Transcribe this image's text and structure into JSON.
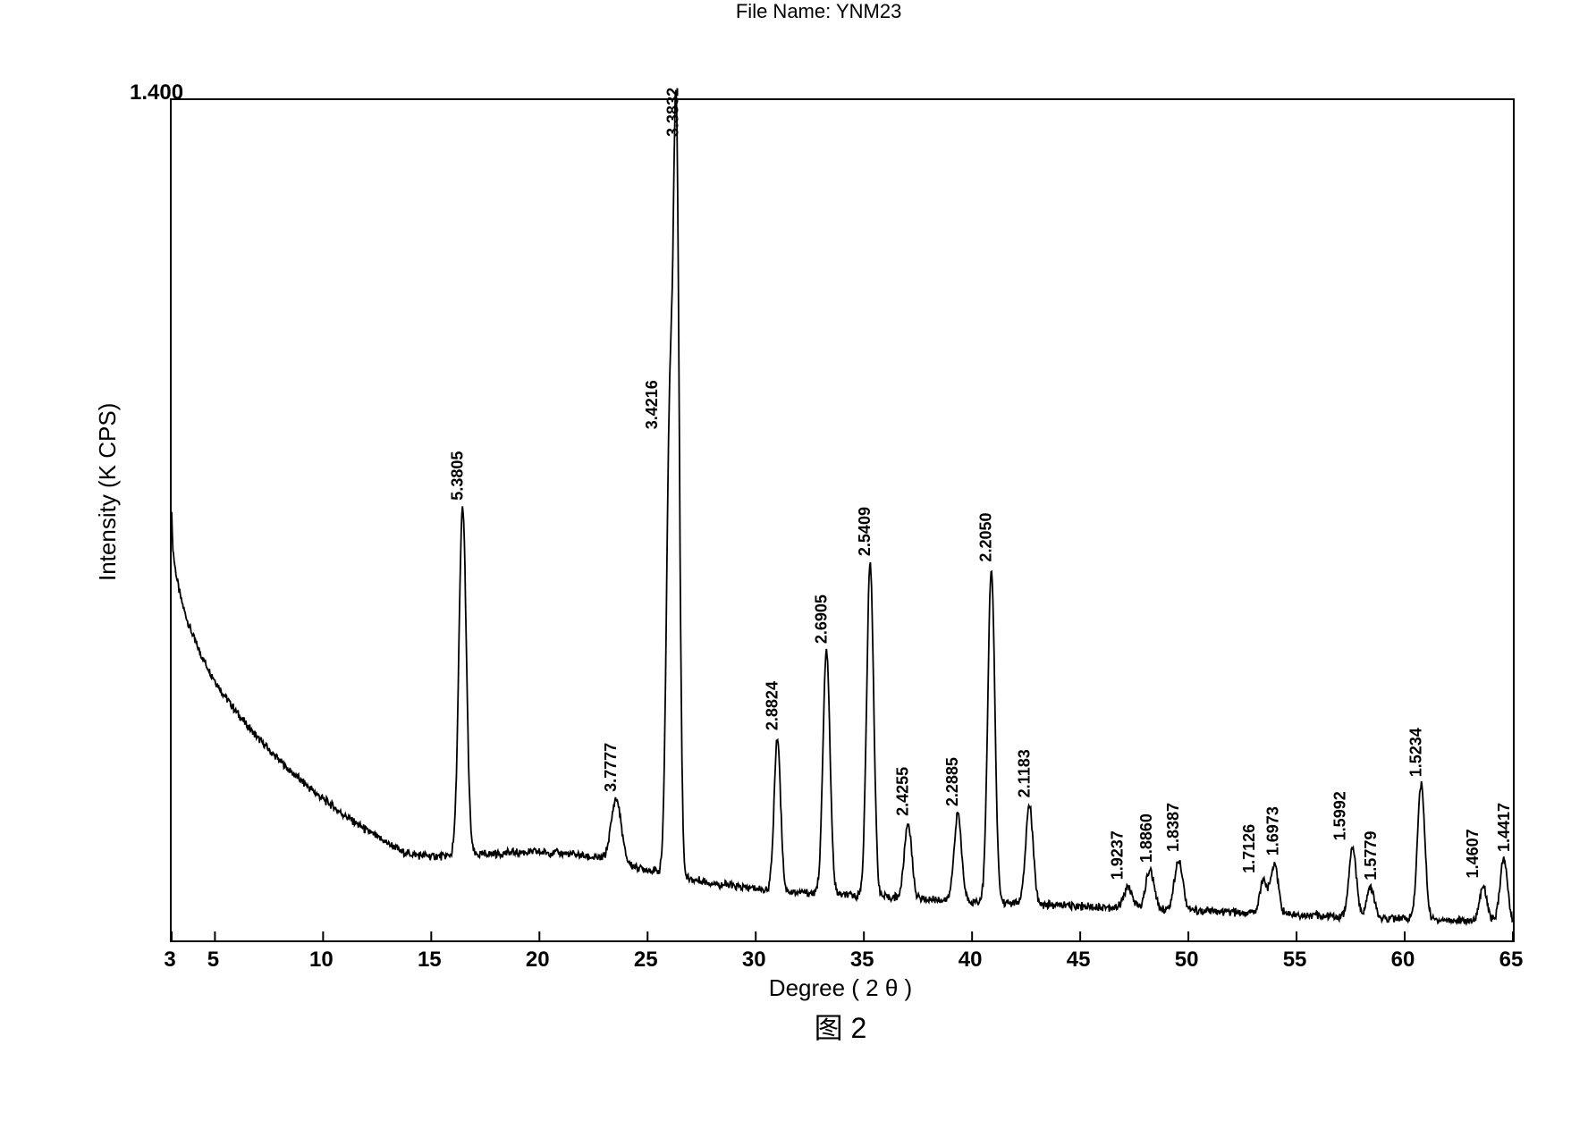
{
  "file_name_label": "File Name: YNM23",
  "figure_caption": "图 2",
  "chart": {
    "type": "xrd-spectrum",
    "xlabel": "Degree ( 2 θ )",
    "ylabel": "Intensity   (K CPS)",
    "ylim_label": "1.400",
    "xlim": [
      3,
      65
    ],
    "ylim": [
      0,
      1.4
    ],
    "background_color": "#ffffff",
    "line_color": "#000000",
    "line_width": 1.8,
    "label_fontsize": 26,
    "tick_fontsize": 24,
    "peak_label_fontsize": 18,
    "x_ticks": [
      3,
      5,
      10,
      15,
      20,
      25,
      30,
      35,
      40,
      45,
      50,
      55,
      60,
      65
    ],
    "baseline_start_y": 0.72,
    "baseline_trough_x": 13.5,
    "baseline_trough_y": 0.145,
    "baseline_hump_center": 21,
    "baseline_hump_height": 0.04,
    "baseline_end_y": 0.03,
    "noise_amplitude": 0.012,
    "peaks": [
      {
        "two_theta": 16.45,
        "height": 0.58,
        "fwhm": 0.4,
        "label": "5.3805"
      },
      {
        "two_theta": 23.55,
        "height": 0.105,
        "fwhm": 0.55,
        "label": "3.7777"
      },
      {
        "two_theta": 26.02,
        "height": 0.73,
        "fwhm": 0.35,
        "label": "3.4216"
      },
      {
        "two_theta": 26.33,
        "height": 1.22,
        "fwhm": 0.32,
        "label": "3.3832"
      },
      {
        "two_theta": 31.0,
        "height": 0.255,
        "fwhm": 0.35,
        "label": "2.8824"
      },
      {
        "two_theta": 33.27,
        "height": 0.405,
        "fwhm": 0.38,
        "label": "2.6905"
      },
      {
        "two_theta": 35.29,
        "height": 0.555,
        "fwhm": 0.38,
        "label": "2.5409"
      },
      {
        "two_theta": 37.04,
        "height": 0.125,
        "fwhm": 0.4,
        "label": "2.4255"
      },
      {
        "two_theta": 39.34,
        "height": 0.145,
        "fwhm": 0.4,
        "label": "2.2885"
      },
      {
        "two_theta": 40.89,
        "height": 0.555,
        "fwhm": 0.38,
        "label": "2.2050"
      },
      {
        "two_theta": 42.65,
        "height": 0.165,
        "fwhm": 0.4,
        "label": "2.1183"
      },
      {
        "two_theta": 47.21,
        "height": 0.035,
        "fwhm": 0.45,
        "label": "1.9237"
      },
      {
        "two_theta": 48.22,
        "height": 0.065,
        "fwhm": 0.45,
        "label": "1.8860"
      },
      {
        "two_theta": 49.55,
        "height": 0.085,
        "fwhm": 0.45,
        "label": "1.8387"
      },
      {
        "two_theta": 53.47,
        "height": 0.055,
        "fwhm": 0.4,
        "label": "1.7126"
      },
      {
        "two_theta": 53.98,
        "height": 0.085,
        "fwhm": 0.4,
        "label": "1.6973"
      },
      {
        "two_theta": 57.59,
        "height": 0.115,
        "fwhm": 0.4,
        "label": "1.5992"
      },
      {
        "two_theta": 58.42,
        "height": 0.05,
        "fwhm": 0.4,
        "label": "1.5779"
      },
      {
        "two_theta": 60.76,
        "height": 0.225,
        "fwhm": 0.4,
        "label": "1.5234"
      },
      {
        "two_theta": 63.63,
        "height": 0.06,
        "fwhm": 0.4,
        "label": "1.4607"
      },
      {
        "two_theta": 64.58,
        "height": 0.105,
        "fwhm": 0.4,
        "label": "1.4417"
      }
    ],
    "peak_label_offsets": {
      "3.4216": -14,
      "3.3832": 2,
      "1.7126": -10,
      "1.6973": 4,
      "1.5992": -8,
      "1.5779": 6,
      "1.9237": -6,
      "1.8860": 2,
      "1.4607": -6,
      "1.4417": 6
    }
  }
}
